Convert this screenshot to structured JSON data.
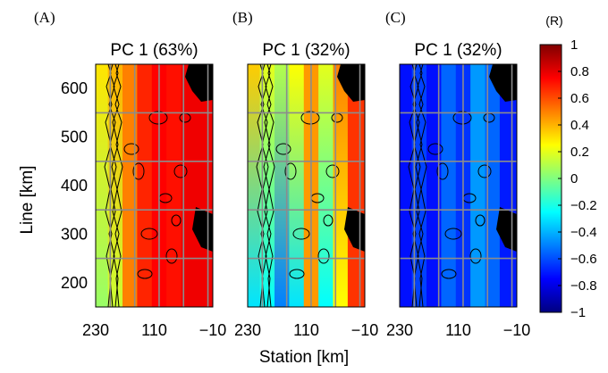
{
  "chart_data": {
    "type": "heatmap",
    "colormap": "jet",
    "grid": true,
    "xlabel": "Station [km]",
    "ylabel": "Line [km]",
    "xlim": [
      230,
      -10
    ],
    "ylim": [
      150,
      650
    ],
    "x_ticks": [
      {
        "value": 230,
        "label": "230"
      },
      {
        "value": 110,
        "label": "110"
      },
      {
        "value": -10,
        "label": "−10"
      }
    ],
    "y_ticks": [
      {
        "value": 200,
        "label": "200"
      },
      {
        "value": 300,
        "label": "300"
      },
      {
        "value": 400,
        "label": "400"
      },
      {
        "value": 500,
        "label": "500"
      },
      {
        "value": 600,
        "label": "600"
      }
    ],
    "panels": [
      {
        "letter": "(A)",
        "title": "PC 1 (63%)",
        "bands": [
          {
            "x_from": 230,
            "x_to": 205,
            "value": 0.2,
            "grad": [
              0.05,
              0.3
            ]
          },
          {
            "x_from": 205,
            "x_to": 175,
            "value": 0.3,
            "grad": [
              0.15,
              0.4
            ]
          },
          {
            "x_from": 175,
            "x_to": 145,
            "value": 0.5
          },
          {
            "x_from": 145,
            "x_to": 115,
            "value": 0.68
          },
          {
            "x_from": 115,
            "x_to": 85,
            "value": 0.75
          },
          {
            "x_from": 85,
            "x_to": 55,
            "value": 0.72
          },
          {
            "x_from": 55,
            "x_to": -10,
            "value": 0.78
          }
        ]
      },
      {
        "letter": "(B)",
        "title": "PC 1 (32%)",
        "bands": [
          {
            "x_from": 230,
            "x_to": 205,
            "value": 0.05,
            "grad": [
              -0.3,
              0.35
            ]
          },
          {
            "x_from": 205,
            "x_to": 175,
            "value": -0.05,
            "grad": [
              -0.25,
              0.2
            ]
          },
          {
            "x_from": 175,
            "x_to": 145,
            "value": -0.15,
            "grad": [
              -0.5,
              0.1
            ]
          },
          {
            "x_from": 145,
            "x_to": 115,
            "value": 0.0,
            "grad": [
              -0.3,
              0.25
            ]
          },
          {
            "x_from": 115,
            "x_to": 85,
            "value": 0.45
          },
          {
            "x_from": 85,
            "x_to": 55,
            "value": 0.0,
            "grad": [
              -0.25,
              0.2
            ]
          },
          {
            "x_from": 55,
            "x_to": 25,
            "value": 0.35,
            "grad": [
              0.25,
              0.5
            ]
          },
          {
            "x_from": 25,
            "x_to": -10,
            "value": 0.65
          }
        ]
      },
      {
        "letter": "(C)",
        "title": "PC 1 (32%)",
        "bands": [
          {
            "x_from": 230,
            "x_to": 205,
            "value": -0.72
          },
          {
            "x_from": 205,
            "x_to": 175,
            "value": -0.62
          },
          {
            "x_from": 175,
            "x_to": 145,
            "value": -0.72
          },
          {
            "x_from": 145,
            "x_to": 115,
            "value": -0.55
          },
          {
            "x_from": 115,
            "x_to": 85,
            "value": -0.65
          },
          {
            "x_from": 85,
            "x_to": 55,
            "value": -0.45
          },
          {
            "x_from": 55,
            "x_to": 25,
            "value": -0.55
          },
          {
            "x_from": 25,
            "x_to": -10,
            "value": -0.7
          }
        ]
      }
    ],
    "colorbar": {
      "unit": "(R)",
      "min": -1,
      "max": 1,
      "ticks": [
        {
          "value": 1,
          "label": "1"
        },
        {
          "value": 0.8,
          "label": "0.8"
        },
        {
          "value": 0.6,
          "label": "0.6"
        },
        {
          "value": 0.4,
          "label": "0.4"
        },
        {
          "value": 0.2,
          "label": "0.2"
        },
        {
          "value": 0,
          "label": "0"
        },
        {
          "value": -0.2,
          "label": "−0.2"
        },
        {
          "value": -0.4,
          "label": "−0.4"
        },
        {
          "value": -0.6,
          "label": "−0.6"
        },
        {
          "value": -0.8,
          "label": "−0.8"
        },
        {
          "value": -1,
          "label": "−1"
        }
      ]
    }
  }
}
